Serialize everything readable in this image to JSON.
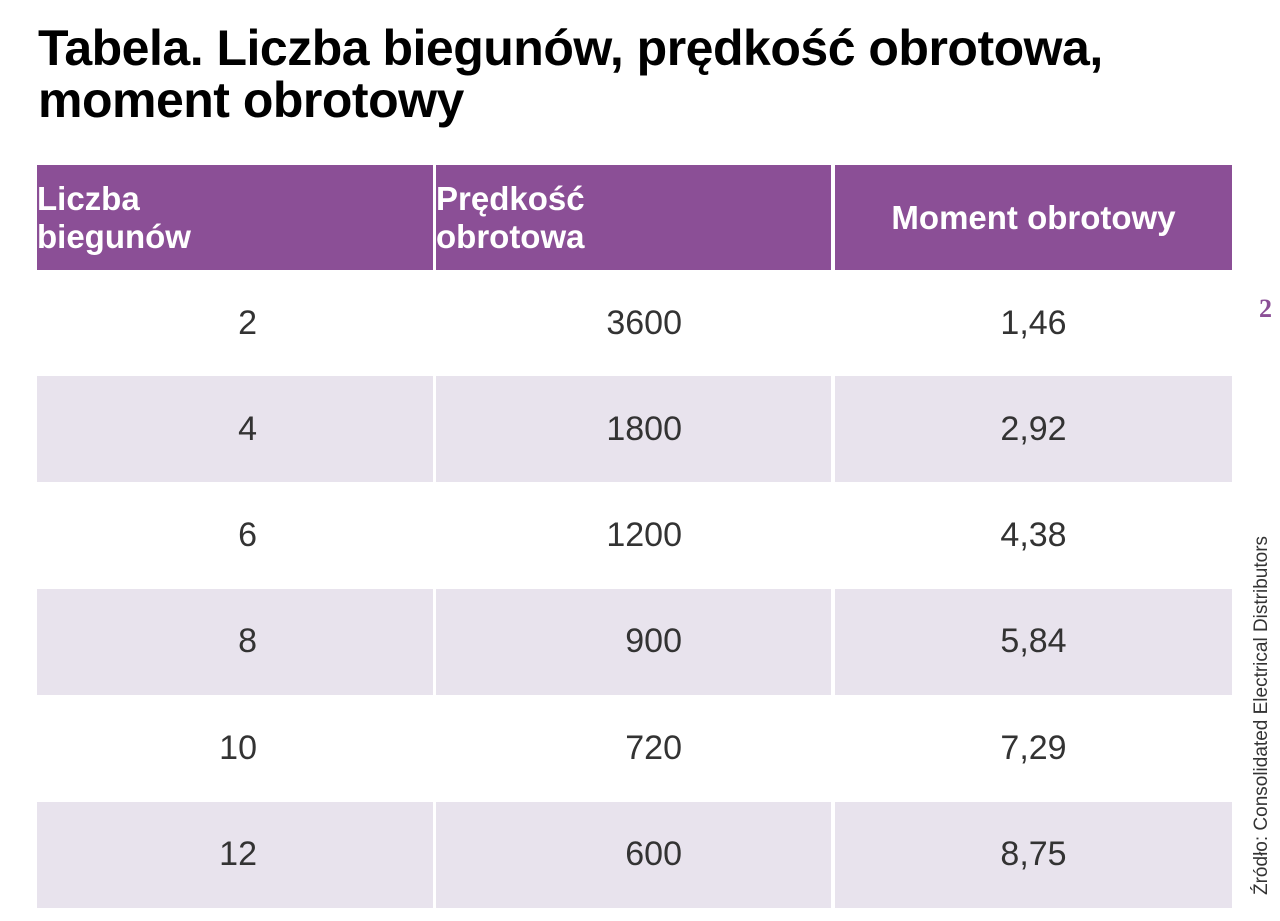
{
  "header": {
    "title": "Tabela. Liczba biegunów, prędkość obrotowa, moment obrotowy"
  },
  "table": {
    "columns": [
      "Liczba biegunów",
      "Prędkość obrotowa",
      "Moment obrotowy"
    ],
    "rows": [
      [
        "2",
        "3600",
        "1,46"
      ],
      [
        "4",
        "1800",
        "2,92"
      ],
      [
        "6",
        "1200",
        "4,38"
      ],
      [
        "8",
        "900",
        "5,84"
      ],
      [
        "10",
        "720",
        "7,29"
      ],
      [
        "12",
        "600",
        "8,75"
      ]
    ]
  },
  "page_number": "2",
  "source": "Źródło: Consolidated Electrical Distributors"
}
